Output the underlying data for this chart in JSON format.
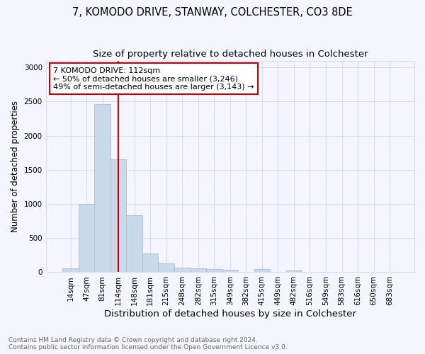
{
  "title": "7, KOMODO DRIVE, STANWAY, COLCHESTER, CO3 8DE",
  "subtitle": "Size of property relative to detached houses in Colchester",
  "xlabel": "Distribution of detached houses by size in Colchester",
  "ylabel": "Number of detached properties",
  "categories": [
    "14sqm",
    "47sqm",
    "81sqm",
    "114sqm",
    "148sqm",
    "181sqm",
    "215sqm",
    "248sqm",
    "282sqm",
    "315sqm",
    "349sqm",
    "382sqm",
    "415sqm",
    "449sqm",
    "482sqm",
    "516sqm",
    "549sqm",
    "583sqm",
    "616sqm",
    "650sqm",
    "683sqm"
  ],
  "values": [
    60,
    1000,
    2460,
    1650,
    830,
    270,
    130,
    65,
    60,
    50,
    35,
    0,
    45,
    0,
    30,
    0,
    0,
    0,
    0,
    0,
    0
  ],
  "bar_color": "#c9d9ea",
  "bar_edge_color": "#a8bece",
  "vline_x": 3.0,
  "vline_color": "#cc0000",
  "annotation_text": "7 KOMODO DRIVE: 112sqm\n← 50% of detached houses are smaller (3,246)\n49% of semi-detached houses are larger (3,143) →",
  "annotation_box_color": "#ffffff",
  "annotation_box_edge": "#cc0000",
  "ylim": [
    0,
    3100
  ],
  "yticks": [
    0,
    500,
    1000,
    1500,
    2000,
    2500,
    3000
  ],
  "footer": "Contains HM Land Registry data © Crown copyright and database right 2024.\nContains public sector information licensed under the Open Government Licence v3.0.",
  "background_color": "#f5f5ff",
  "grid_color": "#c8d4e8",
  "title_fontsize": 10.5,
  "subtitle_fontsize": 9.5,
  "xlabel_fontsize": 9.5,
  "ylabel_fontsize": 8.5,
  "tick_fontsize": 7.5,
  "annotation_fontsize": 8,
  "footer_fontsize": 6.5
}
